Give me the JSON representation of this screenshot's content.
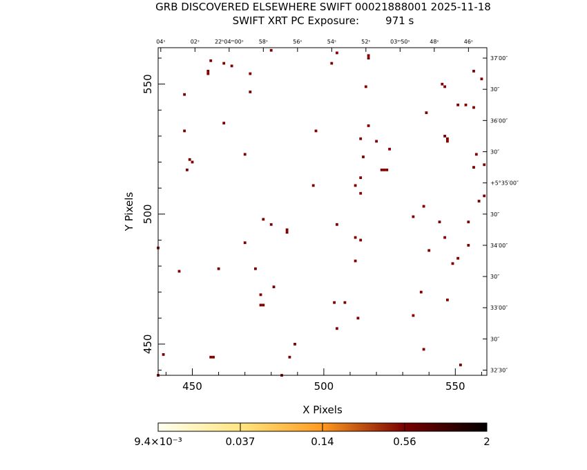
{
  "header": {
    "title_line1": "GRB DISCOVERED ELSEWHERE SWIFT 00021888001 2025-11-18",
    "title_line2": "SWIFT XRT PC Exposure:        971 s"
  },
  "chart_data": {
    "type": "heatmap",
    "title": "GRB DISCOVERED ELSEWHERE SWIFT 00021888001 2025-11-18",
    "subtitle": "SWIFT XRT PC Exposure:        971 s",
    "xlabel": "X Pixels",
    "ylabel": "Y Pixels",
    "xlim": [
      437,
      562
    ],
    "ylim": [
      438,
      564
    ],
    "x_ticks": [
      450,
      500,
      550
    ],
    "y_ticks": [
      450,
      500,
      550
    ],
    "top_axis_labels": [
      {
        "x": 438,
        "label": "04ˢ"
      },
      {
        "x": 451,
        "label": "02ˢ"
      },
      {
        "x": 464,
        "label": "22ʰ04ᵐ00ˢ"
      },
      {
        "x": 477,
        "label": "58ˢ"
      },
      {
        "x": 490,
        "label": "56ˢ"
      },
      {
        "x": 503,
        "label": "54ˢ"
      },
      {
        "x": 516,
        "label": "52ˢ"
      },
      {
        "x": 529,
        "label": "03ᵐ50ˢ"
      },
      {
        "x": 542,
        "label": "48ˢ"
      },
      {
        "x": 555,
        "label": "46ˢ"
      }
    ],
    "right_axis_labels": [
      {
        "y": 560,
        "label": "37′00″"
      },
      {
        "y": 548,
        "label": "30″"
      },
      {
        "y": 536,
        "label": "36′00″"
      },
      {
        "y": 524,
        "label": "30″"
      },
      {
        "y": 512,
        "label": "+5°35′00″"
      },
      {
        "y": 500,
        "label": "30″"
      },
      {
        "y": 488,
        "label": "34′00″"
      },
      {
        "y": 476,
        "label": "30″"
      },
      {
        "y": 464,
        "label": "33′00″"
      },
      {
        "y": 452,
        "label": "30″"
      },
      {
        "y": 440,
        "label": "32′30″"
      }
    ],
    "colorbar": {
      "tick_labels": [
        "9.4×10⁻³",
        "0.037",
        "0.14",
        "0.56",
        "2"
      ],
      "colors": [
        "#fffff0",
        "#ffe680",
        "#ff9a1f",
        "#7a0000",
        "#000000"
      ]
    },
    "pixel_color": "#800000",
    "pixels": [
      [
        457,
        559
      ],
      [
        462,
        558
      ],
      [
        465,
        557
      ],
      [
        456,
        555
      ],
      [
        456,
        554
      ],
      [
        472,
        554
      ],
      [
        505,
        562
      ],
      [
        503,
        558
      ],
      [
        480,
        563
      ],
      [
        517,
        561
      ],
      [
        517,
        560
      ],
      [
        447,
        546
      ],
      [
        472,
        547
      ],
      [
        516,
        549
      ],
      [
        546,
        549
      ],
      [
        545,
        550
      ],
      [
        560,
        552
      ],
      [
        557,
        555
      ],
      [
        539,
        539
      ],
      [
        551,
        542
      ],
      [
        554,
        542
      ],
      [
        557,
        541
      ],
      [
        462,
        535
      ],
      [
        497,
        532
      ],
      [
        517,
        534
      ],
      [
        447,
        532
      ],
      [
        514,
        529
      ],
      [
        520,
        528
      ],
      [
        525,
        525
      ],
      [
        546,
        530
      ],
      [
        547,
        529
      ],
      [
        547,
        528
      ],
      [
        470,
        523
      ],
      [
        515,
        522
      ],
      [
        558,
        523
      ],
      [
        449,
        521
      ],
      [
        450,
        520
      ],
      [
        448,
        517
      ],
      [
        522,
        517
      ],
      [
        523,
        517
      ],
      [
        524,
        517
      ],
      [
        557,
        518
      ],
      [
        561,
        519
      ],
      [
        514,
        514
      ],
      [
        496,
        511
      ],
      [
        512,
        511
      ],
      [
        514,
        508
      ],
      [
        561,
        507
      ],
      [
        559,
        505
      ],
      [
        538,
        503
      ],
      [
        534,
        499
      ],
      [
        477,
        498
      ],
      [
        480,
        496
      ],
      [
        486,
        494
      ],
      [
        486,
        493
      ],
      [
        505,
        496
      ],
      [
        544,
        497
      ],
      [
        555,
        497
      ],
      [
        512,
        491
      ],
      [
        514,
        490
      ],
      [
        546,
        491
      ],
      [
        470,
        489
      ],
      [
        555,
        488
      ],
      [
        540,
        486
      ],
      [
        437,
        487
      ],
      [
        551,
        483
      ],
      [
        549,
        481
      ],
      [
        512,
        482
      ],
      [
        460,
        479
      ],
      [
        474,
        479
      ],
      [
        445,
        478
      ],
      [
        481,
        472
      ],
      [
        476,
        469
      ],
      [
        537,
        470
      ],
      [
        476,
        465
      ],
      [
        477,
        465
      ],
      [
        504,
        466
      ],
      [
        508,
        466
      ],
      [
        547,
        467
      ],
      [
        534,
        461
      ],
      [
        513,
        460
      ],
      [
        505,
        456
      ],
      [
        489,
        450
      ],
      [
        538,
        448
      ],
      [
        457,
        445
      ],
      [
        458,
        445
      ],
      [
        487,
        445
      ],
      [
        439,
        446
      ],
      [
        552,
        442
      ],
      [
        437,
        438
      ],
      [
        484,
        438
      ]
    ]
  }
}
